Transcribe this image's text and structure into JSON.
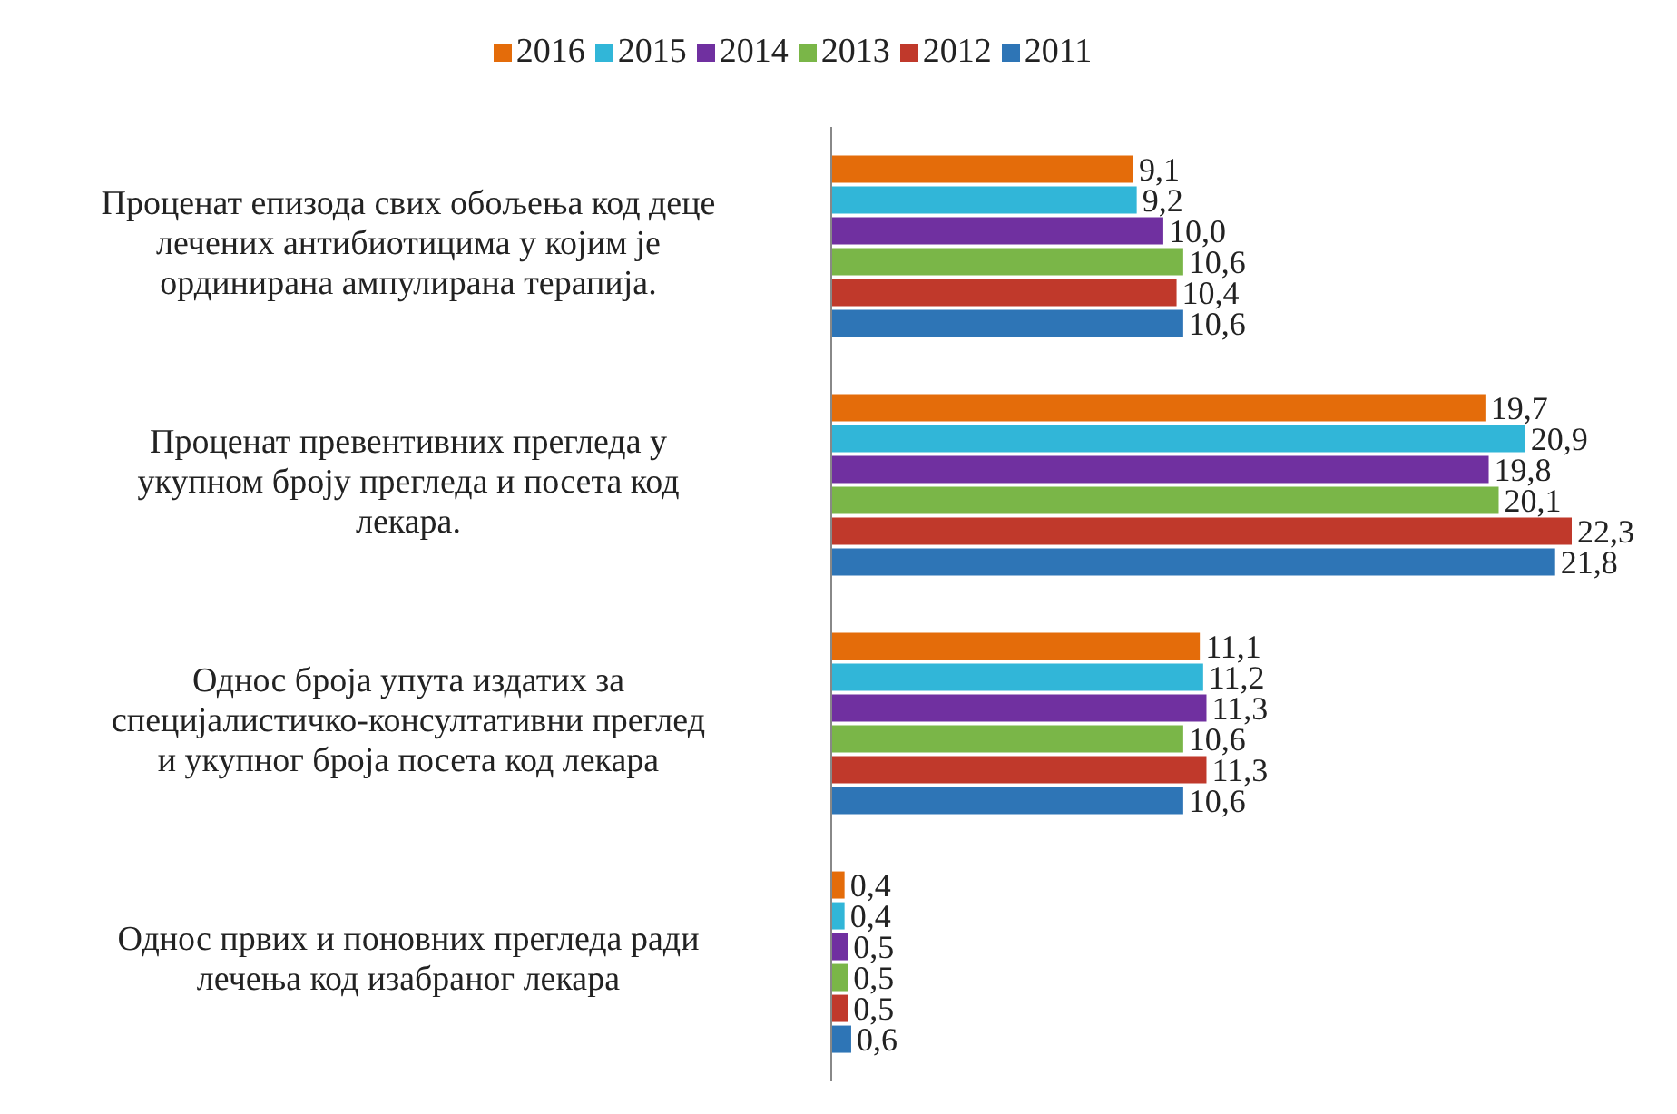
{
  "chart_data": {
    "type": "bar",
    "orientation": "horizontal",
    "legend": "top",
    "categories": [
      "Проценат епизода свих обољења код деце лечених антибиотицима  у којим је ординирана ампулирана  терапија.",
      "Проценат превентивних  прегледа у укупном  броју прегледа и посета код лекара.",
      "Однос броја упута издатих  за специјалистичко-консултативни преглед и укупног  броја посета код лекара",
      "Однос првих  и поновних  прегледа ради лечења код изабраног лекара"
    ],
    "series": [
      {
        "name": "2016",
        "color": "#e46c0a",
        "values": [
          9.1,
          19.7,
          11.1,
          0.4
        ],
        "value_labels": [
          "9,1",
          "19,7",
          "11,1",
          "0,4"
        ]
      },
      {
        "name": "2015",
        "color": "#31b6d8",
        "values": [
          9.2,
          20.9,
          11.2,
          0.4
        ],
        "value_labels": [
          "9,2",
          "20,9",
          "11,2",
          "0,4"
        ]
      },
      {
        "name": "2014",
        "color": "#7030a0",
        "values": [
          10.0,
          19.8,
          11.3,
          0.5
        ],
        "value_labels": [
          "10,0",
          "19,8",
          "11,3",
          "0,5"
        ]
      },
      {
        "name": "2013",
        "color": "#7ab648",
        "values": [
          10.6,
          20.1,
          10.6,
          0.5
        ],
        "value_labels": [
          "10,6",
          "20,1",
          "10,6",
          "0,5"
        ]
      },
      {
        "name": "2012",
        "color": "#c0392b",
        "values": [
          10.4,
          22.3,
          11.3,
          0.5
        ],
        "value_labels": [
          "10,4",
          "22,3",
          "11,3",
          "0,5"
        ]
      },
      {
        "name": "2011",
        "color": "#2e75b6",
        "values": [
          10.6,
          21.8,
          10.6,
          0.6
        ],
        "value_labels": [
          "10,6",
          "21,8",
          "10,6",
          "0,6"
        ]
      }
    ]
  }
}
